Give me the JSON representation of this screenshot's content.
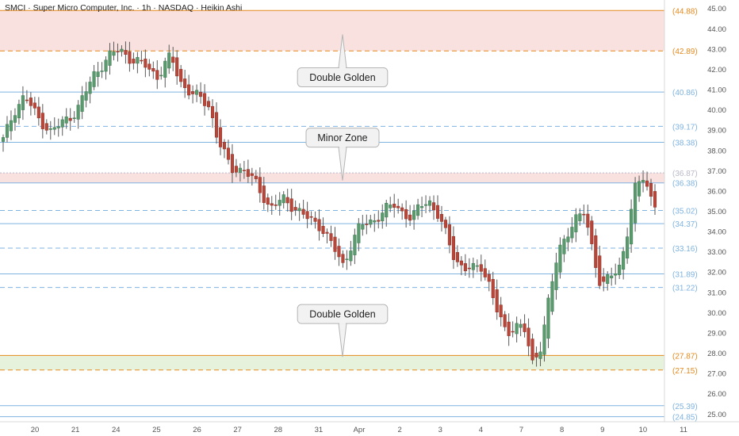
{
  "header": {
    "title": "SMCI · Super Micro Computer, Inc. · 1h · NASDAQ · Heikin Ashi"
  },
  "chart_data": {
    "type": "candlestick",
    "ylim": [
      24.6,
      45.4
    ],
    "y_ticks": [
      {
        "value": 45,
        "label": "45.00"
      },
      {
        "value": 44,
        "label": "44.00"
      },
      {
        "value": 43,
        "label": "43.00"
      },
      {
        "value": 42,
        "label": "42.00"
      },
      {
        "value": 41,
        "label": "41.00"
      },
      {
        "value": 40,
        "label": "40.00"
      },
      {
        "value": 39,
        "label": "39.00"
      },
      {
        "value": 38,
        "label": "38.00"
      },
      {
        "value": 37,
        "label": "37.00"
      },
      {
        "value": 36,
        "label": "36.00"
      },
      {
        "value": 35,
        "label": "35.00"
      },
      {
        "value": 34,
        "label": "34.00"
      },
      {
        "value": 33,
        "label": "33.00"
      },
      {
        "value": 32,
        "label": "32.00"
      },
      {
        "value": 31,
        "label": "31.00"
      },
      {
        "value": 30,
        "label": "30.00"
      },
      {
        "value": 29,
        "label": "29.00"
      },
      {
        "value": 28,
        "label": "28.00"
      },
      {
        "value": 27,
        "label": "27.00"
      },
      {
        "value": 26,
        "label": "26.00"
      },
      {
        "value": 25,
        "label": "25.00"
      }
    ],
    "x_ticks": [
      "20",
      "21",
      "24",
      "25",
      "26",
      "27",
      "28",
      "31",
      "Apr",
      "2",
      "3",
      "4",
      "7",
      "8",
      "9",
      "10",
      "11"
    ],
    "zones": [
      {
        "from": 42.89,
        "to": 44.88,
        "color": "#f8e1df"
      },
      {
        "from": 36.38,
        "to": 36.87,
        "color": "#f8e1df"
      },
      {
        "from": 27.15,
        "to": 27.87,
        "color": "#e6f2dc"
      }
    ],
    "levels": [
      {
        "value": 44.88,
        "label": "(44.88)",
        "style": "solid",
        "color": "#e58a1f"
      },
      {
        "value": 42.89,
        "label": "(42.89)",
        "style": "dashed",
        "color": "#e58a1f"
      },
      {
        "value": 40.86,
        "label": "(40.86)",
        "style": "solid",
        "color": "#7fb3e0"
      },
      {
        "value": 39.17,
        "label": "(39.17)",
        "style": "dashed",
        "color": "#7fb3e0"
      },
      {
        "value": 38.38,
        "label": "(38.38)",
        "style": "solid",
        "color": "#7fb3e0"
      },
      {
        "value": 36.87,
        "label": "(36.87)",
        "style": "dotted",
        "color": "#b9b9c9"
      },
      {
        "value": 36.38,
        "label": "(36.38)",
        "style": "solid",
        "color": "#7fb3e0"
      },
      {
        "value": 35.02,
        "label": "(35.02)",
        "style": "dashed",
        "color": "#7fb3e0"
      },
      {
        "value": 34.37,
        "label": "(34.37)",
        "style": "solid",
        "color": "#7fb3e0"
      },
      {
        "value": 33.16,
        "label": "(33.16)",
        "style": "dashed",
        "color": "#7fb3e0"
      },
      {
        "value": 31.89,
        "label": "(31.89)",
        "style": "solid",
        "color": "#7fb3e0"
      },
      {
        "value": 31.22,
        "label": "(31.22)",
        "style": "dashed",
        "color": "#7fb3e0"
      },
      {
        "value": 27.87,
        "label": "(27.87)",
        "style": "solid",
        "color": "#e58a1f"
      },
      {
        "value": 27.15,
        "label": "(27.15)",
        "style": "dashed",
        "color": "#e58a1f"
      },
      {
        "value": 25.39,
        "label": "(25.39)",
        "style": "solid",
        "color": "#7fb3e0"
      },
      {
        "value": 24.85,
        "label": "(24.85)",
        "style": "solid",
        "color": "#7fb3e0"
      }
    ],
    "annotations": [
      {
        "text": "Double Golden",
        "anchor_value": 43.7,
        "pointer": "up"
      },
      {
        "text": "Minor Zone",
        "anchor_value": 36.5,
        "pointer": "down"
      },
      {
        "text": "Double Golden",
        "anchor_value": 27.8,
        "pointer": "down"
      }
    ],
    "colors": {
      "up": "#5a9a6e",
      "down": "#b8473a",
      "wick": "#5a5a5a"
    },
    "close_path": [
      [
        0,
        38.5
      ],
      [
        5,
        39.9
      ],
      [
        10,
        40.7
      ],
      [
        16,
        39.6
      ],
      [
        22,
        38.9
      ],
      [
        28,
        39.4
      ],
      [
        34,
        39.9
      ],
      [
        42,
        41.7
      ],
      [
        50,
        42.7
      ],
      [
        54,
        43.0
      ],
      [
        60,
        42.4
      ],
      [
        66,
        42.2
      ],
      [
        72,
        41.6
      ],
      [
        78,
        42.7
      ],
      [
        82,
        41.4
      ],
      [
        88,
        40.7
      ],
      [
        92,
        40.6
      ],
      [
        96,
        40.1
      ],
      [
        100,
        38.4
      ],
      [
        106,
        37.1
      ],
      [
        112,
        37.0
      ],
      [
        118,
        36.3
      ],
      [
        124,
        35.1
      ],
      [
        130,
        35.6
      ],
      [
        136,
        35.1
      ],
      [
        142,
        34.6
      ],
      [
        148,
        34.2
      ],
      [
        154,
        33.1
      ],
      [
        158,
        32.3
      ],
      [
        162,
        33.4
      ],
      [
        166,
        34.3
      ],
      [
        172,
        34.5
      ],
      [
        178,
        35.1
      ],
      [
        182,
        35.3
      ],
      [
        186,
        34.9
      ],
      [
        190,
        34.6
      ],
      [
        194,
        35.3
      ],
      [
        198,
        35.5
      ],
      [
        202,
        34.8
      ],
      [
        206,
        33.8
      ],
      [
        210,
        32.6
      ],
      [
        214,
        32.2
      ],
      [
        218,
        32.1
      ],
      [
        222,
        32.3
      ],
      [
        226,
        31.4
      ],
      [
        230,
        29.9
      ],
      [
        234,
        28.9
      ],
      [
        238,
        29.4
      ],
      [
        242,
        29.3
      ],
      [
        246,
        27.4
      ],
      [
        250,
        28.4
      ],
      [
        254,
        30.9
      ],
      [
        258,
        32.9
      ],
      [
        262,
        33.9
      ],
      [
        266,
        34.6
      ],
      [
        270,
        34.9
      ],
      [
        274,
        33.1
      ],
      [
        278,
        31.2
      ],
      [
        282,
        31.8
      ],
      [
        286,
        32.0
      ],
      [
        290,
        33.9
      ],
      [
        294,
        36.2
      ],
      [
        298,
        36.7
      ],
      [
        300,
        35.9
      ],
      [
        303,
        35.4
      ]
    ]
  }
}
